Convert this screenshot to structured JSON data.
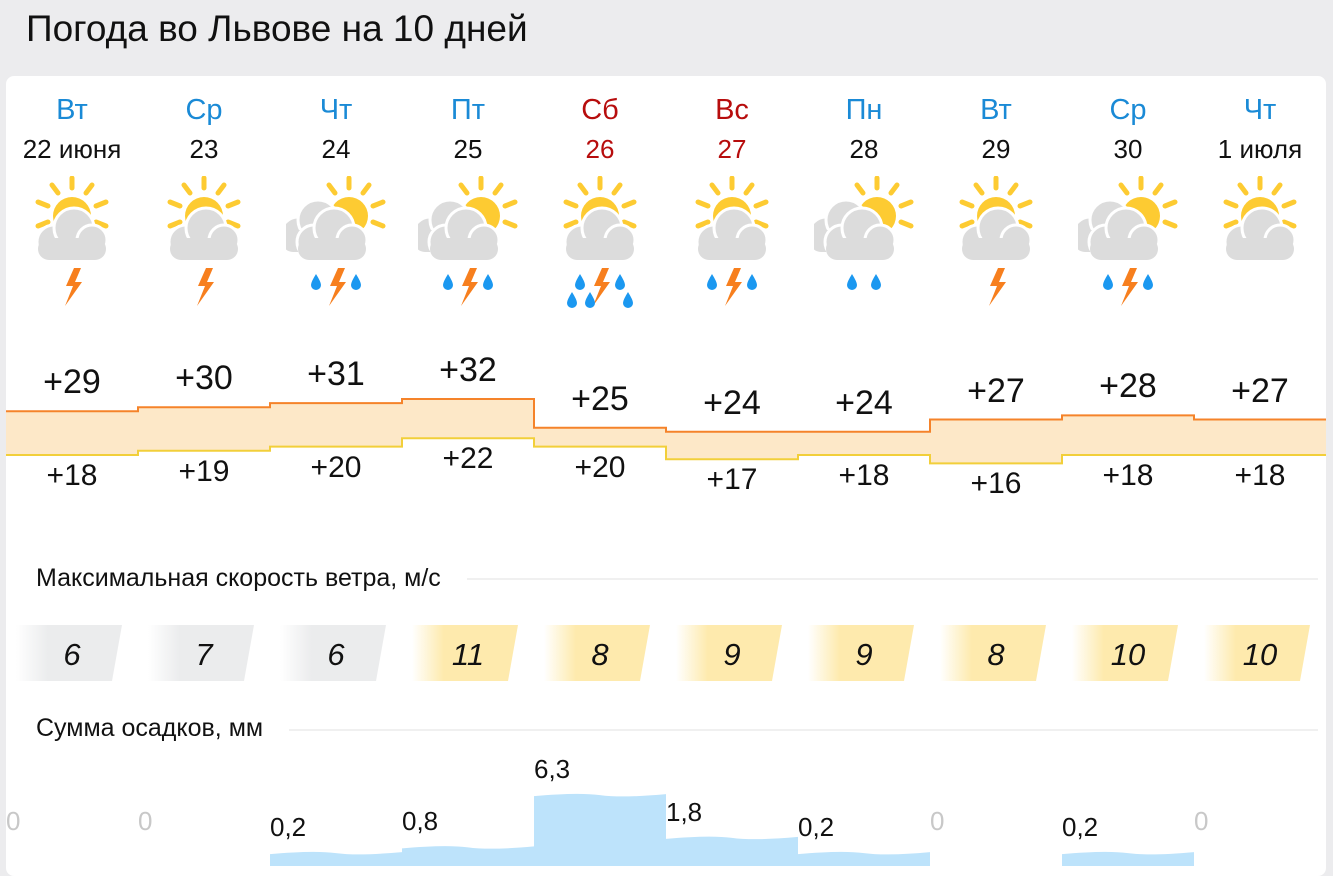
{
  "title": "Погода во Львове на 10 дней",
  "days": [
    {
      "dow": "Вт",
      "date": "22 июня",
      "weekend": false,
      "icon": "sun-cloud-thunder",
      "tmax": "+29",
      "tmin": "+18",
      "wind": "6",
      "precip": "0"
    },
    {
      "dow": "Ср",
      "date": "23",
      "weekend": false,
      "icon": "sun-cloud-thunder",
      "tmax": "+30",
      "tmin": "+19",
      "wind": "7",
      "precip": "0"
    },
    {
      "dow": "Чт",
      "date": "24",
      "weekend": false,
      "icon": "sun-clouds-thunder-rain",
      "tmax": "+31",
      "tmin": "+20",
      "wind": "6",
      "precip": "0,2"
    },
    {
      "dow": "Пт",
      "date": "25",
      "weekend": false,
      "icon": "sun-clouds-thunder-rain",
      "tmax": "+32",
      "tmin": "+22",
      "wind": "11",
      "precip": "0,8"
    },
    {
      "dow": "Сб",
      "date": "26",
      "weekend": true,
      "icon": "sun-cloud-thunder-heavy-rain",
      "tmax": "+25",
      "tmin": "+20",
      "wind": "8",
      "precip": "6,3"
    },
    {
      "dow": "Вс",
      "date": "27",
      "weekend": true,
      "icon": "sun-cloud-thunder-rain",
      "tmax": "+24",
      "tmin": "+17",
      "wind": "9",
      "precip": "1,8"
    },
    {
      "dow": "Пн",
      "date": "28",
      "weekend": false,
      "icon": "sun-clouds-rain",
      "tmax": "+24",
      "tmin": "+18",
      "wind": "9",
      "precip": "0,2"
    },
    {
      "dow": "Вт",
      "date": "29",
      "weekend": false,
      "icon": "sun-cloud-thunder",
      "tmax": "+27",
      "tmin": "+16",
      "wind": "8",
      "precip": "0"
    },
    {
      "dow": "Ср",
      "date": "30",
      "weekend": false,
      "icon": "sun-clouds-thunder-rain",
      "tmax": "+28",
      "tmin": "+18",
      "wind": "10",
      "precip": "0,2"
    },
    {
      "dow": "Чт",
      "date": "1 июля",
      "weekend": false,
      "icon": "sun-cloud",
      "tmax": "+27",
      "tmin": "+18",
      "wind": "10",
      "precip": "0"
    }
  ],
  "wind_title": "Максимальная скорость ветра, м/с",
  "precip_title": "Сумма осадков, мм",
  "colors": {
    "weekday": "#1a8ad6",
    "weekend": "#b70d0d",
    "max_line": "#f5832a",
    "min_line": "#f2cf3a",
    "band": "#fde8c8",
    "wind_calm": "#ebeced",
    "wind_moderate": "#feeaad",
    "precip": "#bde3fb"
  }
}
